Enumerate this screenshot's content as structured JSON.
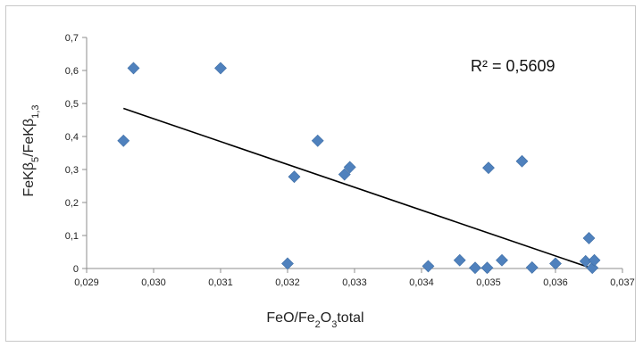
{
  "chart_data": {
    "type": "scatter",
    "title": "",
    "xlabel_parts": [
      "FeO/Fe",
      "2",
      "O",
      "3",
      "total"
    ],
    "ylabel_parts": [
      "FeKβ",
      "5",
      "/FeKβ",
      "1,3"
    ],
    "xlim": [
      0.029,
      0.037
    ],
    "ylim": [
      0,
      0.7
    ],
    "x_ticks": [
      "0,029",
      "0,030",
      "0,031",
      "0,032",
      "0,033",
      "0,034",
      "0,035",
      "0,036",
      "0,037"
    ],
    "y_ticks": [
      "0",
      "0,1",
      "0,2",
      "0,3",
      "0,4",
      "0,5",
      "0,6",
      "0,7"
    ],
    "grid": false,
    "marker_color": "#4f81bd",
    "trendline_color": "#000000",
    "annotation": "R² = 0,5609",
    "trendline": {
      "x": [
        0.02955,
        0.03655
      ],
      "y": [
        0.485,
        0.0
      ]
    },
    "points": [
      {
        "x": 0.02955,
        "y": 0.387
      },
      {
        "x": 0.0297,
        "y": 0.607
      },
      {
        "x": 0.031,
        "y": 0.607
      },
      {
        "x": 0.032,
        "y": 0.015
      },
      {
        "x": 0.0321,
        "y": 0.278
      },
      {
        "x": 0.03245,
        "y": 0.387
      },
      {
        "x": 0.03285,
        "y": 0.285
      },
      {
        "x": 0.03293,
        "y": 0.307
      },
      {
        "x": 0.0341,
        "y": 0.007
      },
      {
        "x": 0.03457,
        "y": 0.025
      },
      {
        "x": 0.0348,
        "y": 0.002
      },
      {
        "x": 0.03498,
        "y": 0.002
      },
      {
        "x": 0.035,
        "y": 0.305
      },
      {
        "x": 0.0352,
        "y": 0.025
      },
      {
        "x": 0.0355,
        "y": 0.325
      },
      {
        "x": 0.03565,
        "y": 0.003
      },
      {
        "x": 0.036,
        "y": 0.015
      },
      {
        "x": 0.03645,
        "y": 0.022
      },
      {
        "x": 0.0365,
        "y": 0.092
      },
      {
        "x": 0.03655,
        "y": 0.002
      },
      {
        "x": 0.03658,
        "y": 0.025
      }
    ]
  }
}
